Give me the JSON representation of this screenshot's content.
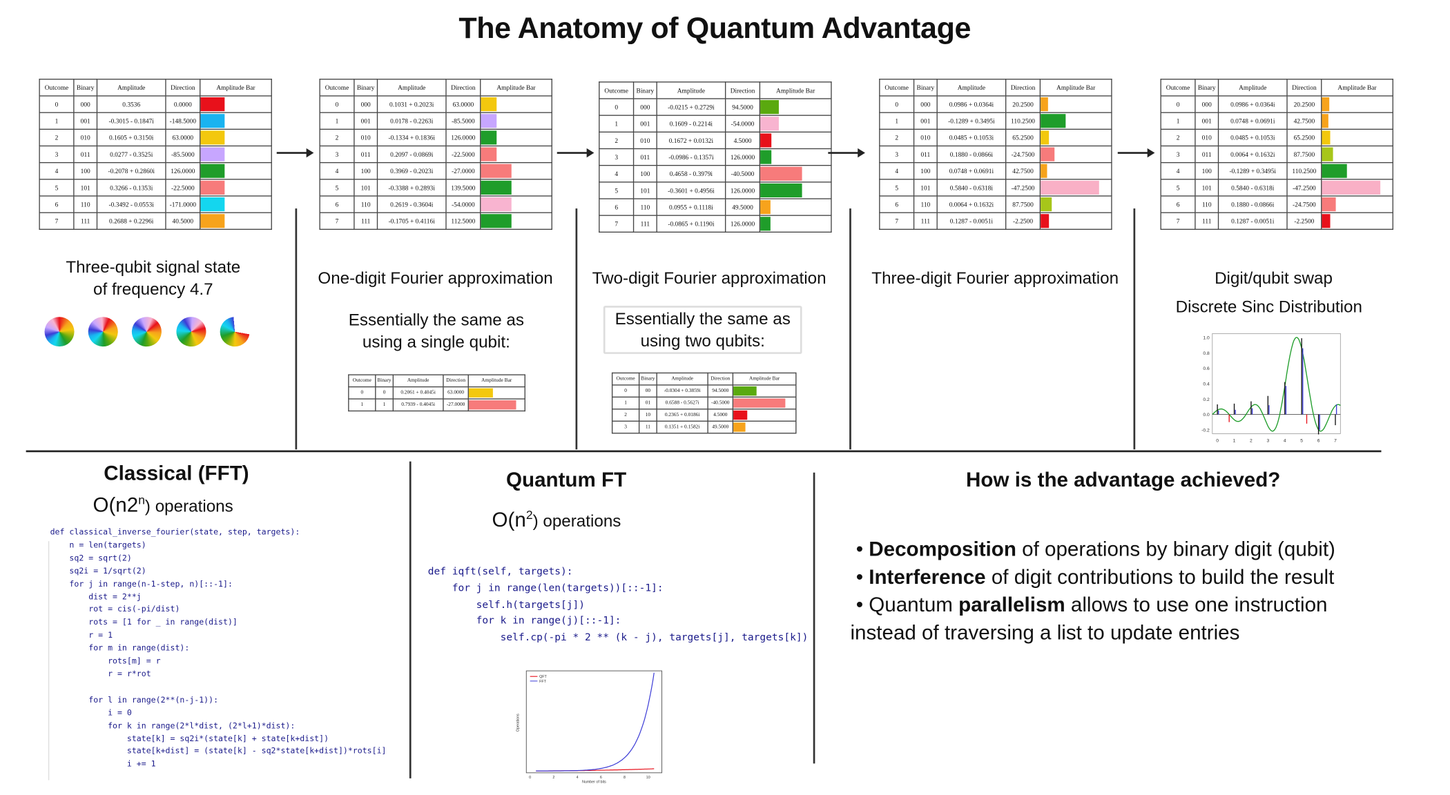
{
  "title": "The Anatomy of Quantum Advantage",
  "colors": {
    "red": "#e8111b",
    "blue": "#1ab3f0",
    "yellow": "#f3c80e",
    "lavender": "#c7a6ff",
    "green": "#1f9d2a",
    "pink": "#f8b4d0",
    "salmon": "#f77b7b",
    "cyan": "#14d6ef",
    "orange": "#f7a31c",
    "darkgreen": "#5aa90f",
    "lime": "#a7c61a",
    "lightpink": "#f9b0c6"
  },
  "table_headers": [
    "Outcome",
    "Binary",
    "Amplitude",
    "Direction",
    "Amplitude Bar"
  ],
  "tables": [
    {
      "rows": [
        [
          "0",
          "000",
          "0.3536",
          "0.0000",
          0.35,
          "#e8111b"
        ],
        [
          "1",
          "001",
          "-0.3015 - 0.1847i",
          "-148.5000",
          0.35,
          "#1ab3f0"
        ],
        [
          "2",
          "010",
          "0.1605 + 0.3150i",
          "63.0000",
          0.35,
          "#f3c80e"
        ],
        [
          "3",
          "011",
          "0.0277 - 0.3525i",
          "-85.5000",
          0.35,
          "#c7a6ff"
        ],
        [
          "4",
          "100",
          "-0.2078 + 0.2860i",
          "126.0000",
          0.35,
          "#1f9d2a"
        ],
        [
          "5",
          "101",
          "0.3266 - 0.1353i",
          "-22.5000",
          0.35,
          "#f77b7b"
        ],
        [
          "6",
          "110",
          "-0.3492 - 0.0553i",
          "-171.0000",
          0.35,
          "#14d6ef"
        ],
        [
          "7",
          "111",
          "0.2688 + 0.2296i",
          "40.5000",
          0.35,
          "#f7a31c"
        ]
      ]
    },
    {
      "rows": [
        [
          "0",
          "000",
          "0.1031 + 0.2023i",
          "63.0000",
          0.23,
          "#f3c80e"
        ],
        [
          "1",
          "001",
          "0.0178 - 0.2263i",
          "-85.5000",
          0.23,
          "#c7a6ff"
        ],
        [
          "2",
          "010",
          "-0.1334 + 0.1836i",
          "126.0000",
          0.23,
          "#1f9d2a"
        ],
        [
          "3",
          "011",
          "0.2097 - 0.0869i",
          "-22.5000",
          0.23,
          "#f77b7b"
        ],
        [
          "4",
          "100",
          "0.3969 - 0.2023i",
          "-27.0000",
          0.45,
          "#f77b7b"
        ],
        [
          "5",
          "101",
          "-0.3388 + 0.2893i",
          "139.5000",
          0.45,
          "#1f9d2a"
        ],
        [
          "6",
          "110",
          "0.2619 - 0.3604i",
          "-54.0000",
          0.45,
          "#f8b4d0"
        ],
        [
          "7",
          "111",
          "-0.1705 + 0.4116i",
          "112.5000",
          0.45,
          "#1f9d2a"
        ]
      ]
    },
    {
      "rows": [
        [
          "0",
          "000",
          "-0.0215 + 0.2729i",
          "94.5000",
          0.27,
          "#5aa90f"
        ],
        [
          "1",
          "001",
          "0.1609 - 0.2214i",
          "-54.0000",
          0.27,
          "#f8b4d0"
        ],
        [
          "2",
          "010",
          "0.1672 + 0.0132i",
          "4.5000",
          0.17,
          "#e8111b"
        ],
        [
          "3",
          "011",
          "-0.0986 - 0.1357i",
          "126.0000",
          0.17,
          "#1f9d2a"
        ],
        [
          "4",
          "100",
          "0.4658 - 0.3979i",
          "-40.5000",
          0.61,
          "#f77b7b"
        ],
        [
          "5",
          "101",
          "-0.3601 + 0.4956i",
          "126.0000",
          0.61,
          "#1f9d2a"
        ],
        [
          "6",
          "110",
          "0.0955 + 0.1118i",
          "49.5000",
          0.15,
          "#f7a31c"
        ],
        [
          "7",
          "111",
          "-0.0865 + 0.1190i",
          "126.0000",
          0.15,
          "#1f9d2a"
        ]
      ]
    },
    {
      "rows": [
        [
          "0",
          "000",
          "0.0986 + 0.0364i",
          "20.2500",
          0.11,
          "#f7a31c"
        ],
        [
          "1",
          "001",
          "-0.1289 + 0.3495i",
          "110.2500",
          0.37,
          "#1f9d2a"
        ],
        [
          "2",
          "010",
          "0.0485 + 0.1053i",
          "65.2500",
          0.12,
          "#f3c80e"
        ],
        [
          "3",
          "011",
          "0.1880 - 0.0866i",
          "-24.7500",
          0.21,
          "#f77b7b"
        ],
        [
          "4",
          "100",
          "0.0748 + 0.0691i",
          "42.7500",
          0.1,
          "#f7a31c"
        ],
        [
          "5",
          "101",
          "0.5840 - 0.6318i",
          "-47.2500",
          0.86,
          "#f9b0c6"
        ],
        [
          "6",
          "110",
          "0.0064 + 0.1632i",
          "87.7500",
          0.16,
          "#a7c61a"
        ],
        [
          "7",
          "111",
          "0.1287 - 0.0051i",
          "-2.2500",
          0.13,
          "#e8111b"
        ]
      ]
    },
    {
      "rows": [
        [
          "0",
          "000",
          "0.0986 + 0.0364i",
          "20.2500",
          0.11,
          "#f7a31c"
        ],
        [
          "1",
          "001",
          "0.0748 + 0.0691i",
          "42.7500",
          0.1,
          "#f7a31c"
        ],
        [
          "2",
          "010",
          "0.0485 + 0.1053i",
          "65.2500",
          0.12,
          "#f3c80e"
        ],
        [
          "3",
          "011",
          "0.0064 + 0.1632i",
          "87.7500",
          0.16,
          "#a7c61a"
        ],
        [
          "4",
          "100",
          "-0.1289 + 0.3495i",
          "110.2500",
          0.37,
          "#1f9d2a"
        ],
        [
          "5",
          "101",
          "0.5840 - 0.6318i",
          "-47.2500",
          0.86,
          "#f9b0c6"
        ],
        [
          "6",
          "110",
          "0.1880 - 0.0866i",
          "-24.7500",
          0.21,
          "#f77b7b"
        ],
        [
          "7",
          "111",
          "0.1287 - 0.0051i",
          "-2.2500",
          0.13,
          "#e8111b"
        ]
      ]
    }
  ],
  "small_tables": [
    {
      "rows": [
        [
          "0",
          "0",
          "0.2061 + 0.4045i",
          "63.0000",
          0.45,
          "#f3c80e"
        ],
        [
          "1",
          "1",
          "0.7939 - 0.4045i",
          "-27.0000",
          0.89,
          "#f77b7b"
        ]
      ]
    },
    {
      "rows": [
        [
          "0",
          "00",
          "-0.0304 + 0.3859i",
          "94.5000",
          0.39,
          "#5aa90f"
        ],
        [
          "1",
          "01",
          "0.6588 - 0.5627i",
          "-40.5000",
          0.87,
          "#f77b7b"
        ],
        [
          "2",
          "10",
          "0.2365 + 0.0186i",
          "4.5000",
          0.24,
          "#e8111b"
        ],
        [
          "3",
          "11",
          "0.1351 + 0.1582i",
          "49.5000",
          0.21,
          "#f7a31c"
        ]
      ]
    }
  ],
  "captions": {
    "signal": [
      "Three-qubit signal state",
      "of frequency 4.7"
    ],
    "one_digit": "One-digit Fourier approximation",
    "one_note": [
      "Essentially the same as",
      "using a single qubit:"
    ],
    "two_digit": "Two-digit Fourier approximation",
    "two_note": [
      "Essentially the same as",
      "using two qubits:"
    ],
    "three_digit": "Three-digit Fourier approximation",
    "swap": "Digit/qubit swap",
    "sinc": "Discrete Sinc Distribution"
  },
  "classical": {
    "heading": "Classical (FFT)",
    "complexity": "O(n2",
    "complexity_sup": "n",
    "complexity_suffix": ") operations",
    "code": [
      "def classical_inverse_fourier(state, step, targets):",
      "    n = len(targets)",
      "    sq2 = sqrt(2)",
      "    sq2i = 1/sqrt(2)",
      "    for j in range(n-1-step, n)[::-1]:",
      "        dist = 2**j",
      "        rot = cis(-pi/dist)",
      "        rots = [1 for _ in range(dist)]",
      "        r = 1",
      "        for m in range(dist):",
      "            rots[m] = r",
      "            r = r*rot",
      "",
      "        for l in range(2**(n-j-1)):",
      "            i = 0",
      "            for k in range(2*l*dist, (2*l+1)*dist):",
      "                state[k] = sq2i*(state[k] + state[k+dist])",
      "                state[k+dist] = (state[k] - sq2*state[k+dist])*rots[i]",
      "                i += 1"
    ]
  },
  "quantum": {
    "heading": "Quantum FT",
    "complexity": "O(n",
    "complexity_sup": "2",
    "complexity_suffix": ") operations",
    "code": [
      "def iqft(self, targets):",
      "    for j in range(len(targets))[::-1]:",
      "        self.h(targets[j])",
      "        for k in range(j)[::-1]:",
      "            self.cp(-pi * 2 ** (k - j), targets[j], targets[k])"
    ]
  },
  "advantage": {
    "heading": "How is the advantage achieved?",
    "bullets": [
      {
        "bold": "Decomposition",
        "rest": " of operations by binary digit (qubit)"
      },
      {
        "bold": "Interference",
        "rest": " of digit contributions to build the result"
      }
    ],
    "b3_pre": "Quantum ",
    "b3_bold": "parallelism",
    "b3_rest": " allows to use one instruction",
    "b3_cont": "instead of traversing a list to update entries"
  },
  "sinc_chart": {
    "type": "line",
    "x_ticks": [
      "0",
      "1",
      "2",
      "3",
      "4",
      "5",
      "6",
      "7"
    ],
    "y_ticks": [
      "1.0",
      "0.8",
      "0.6",
      "0.4",
      "0.2",
      "0.0",
      "-0.2"
    ],
    "stems": [
      0.13,
      0.14,
      0.17,
      0.24,
      0.42,
      0.99,
      -0.26,
      -0.14
    ],
    "blue_stems": [
      0.05,
      0.06,
      0.08,
      0.12,
      0.37,
      0.86,
      -0.2,
      0.13
    ],
    "ylim": [
      -0.25,
      1.05
    ],
    "xlim": [
      -0.3,
      7.3
    ]
  },
  "growth_chart": {
    "type": "line",
    "legend": [
      "QFT",
      "FFT"
    ],
    "ylabel": "Operations",
    "xlabel": "Number of bits",
    "x_ticks": [
      "0",
      "2",
      "4",
      "6",
      "8",
      "10"
    ],
    "series": [
      {
        "name": "QFT",
        "color": "#e8111b"
      },
      {
        "name": "FFT",
        "color": "#3b3bd6"
      }
    ]
  }
}
